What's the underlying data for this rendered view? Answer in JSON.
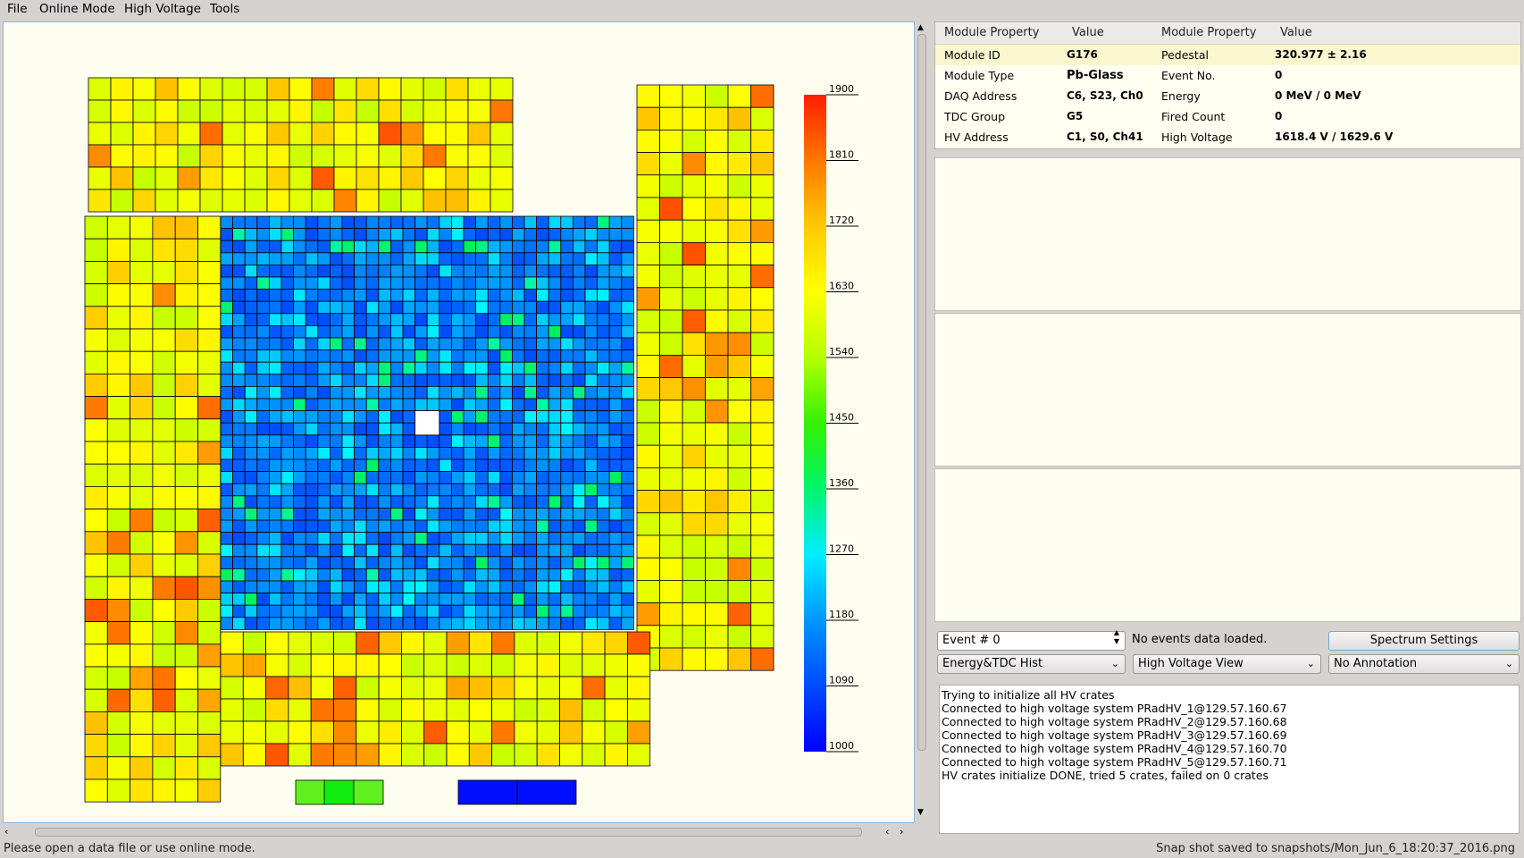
{
  "menu": [
    "File",
    "Online Mode",
    "High Voltage",
    "Tools"
  ],
  "colorbar": {
    "ticks": [
      "1900",
      "1810",
      "1720",
      "1630",
      "1540",
      "1450",
      "1360",
      "1270",
      "1180",
      "1090",
      "1000"
    ],
    "min": 1000,
    "max": 1900
  },
  "properties": {
    "headers": [
      "Module Property",
      "Value",
      "Module Property",
      "Value"
    ],
    "rows": [
      {
        "k1": "Module ID",
        "v1": "G176",
        "k2": "Pedestal",
        "v2": "320.977 ± 2.16"
      },
      {
        "k1": "Module Type",
        "v1": "Pb-Glass",
        "k2": "Event No.",
        "v2": "0"
      },
      {
        "k1": "DAQ Address",
        "v1": "C6, S23, Ch0",
        "k2": "Energy",
        "v2": "0 MeV / 0 MeV"
      },
      {
        "k1": "TDC Group",
        "v1": "G5",
        "k2": "Fired Count",
        "v2": "0"
      },
      {
        "k1": "HV Address",
        "v1": "C1, S0, Ch41",
        "k2": "High Voltage",
        "v2": "1618.4 V / 1629.6 V"
      }
    ]
  },
  "controls": {
    "event_spin": "Event # 0",
    "event_status": "No events data loaded.",
    "spectrum_button": "Spectrum Settings",
    "view_select_1": "Energy&TDC Hist",
    "view_select_2": "High Voltage View",
    "view_select_3": "No Annotation"
  },
  "log": [
    "Trying to initialize all HV crates",
    "Connected to high voltage system PRadHV_1@129.57.160.67",
    "Connected to high voltage system PRadHV_2@129.57.160.68",
    "Connected to high voltage system PRadHV_3@129.57.160.69",
    "Connected to high voltage system PRadHV_4@129.57.160.70",
    "Connected to high voltage system PRadHV_5@129.57.160.71",
    "HV crates initialize DONE, tried 5 crates, failed on 0 crates"
  ],
  "status": {
    "left": "Please open a data file or use online mode.",
    "right": "Snap shot saved to snapshots/Mon_Jun_6_18:20:37_2016.png"
  }
}
